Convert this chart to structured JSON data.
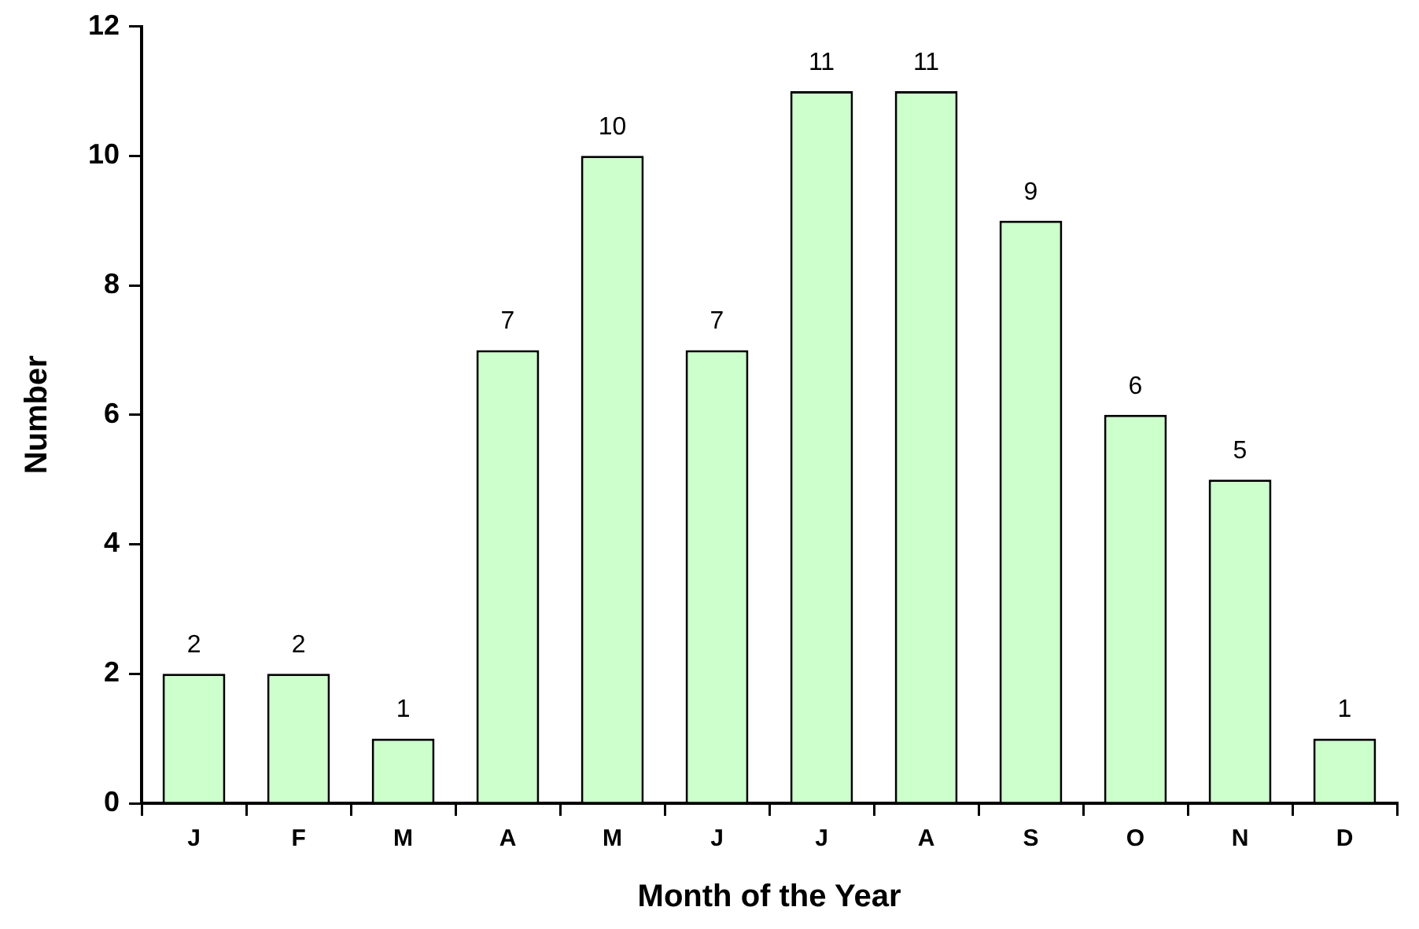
{
  "chart_data": {
    "type": "bar",
    "xlabel": "Month of the Year",
    "ylabel": "Number",
    "categories": [
      "J",
      "F",
      "M",
      "A",
      "M",
      "J",
      "J",
      "A",
      "S",
      "O",
      "N",
      "D"
    ],
    "values": [
      2,
      2,
      1,
      7,
      10,
      7,
      11,
      11,
      9,
      6,
      5,
      1
    ],
    "color": "#ccffcc",
    "ylim": [
      0,
      12
    ],
    "yticks": [
      0,
      2,
      4,
      6,
      8,
      10,
      12
    ],
    "grid": false,
    "legend": false,
    "data_labels": true
  }
}
